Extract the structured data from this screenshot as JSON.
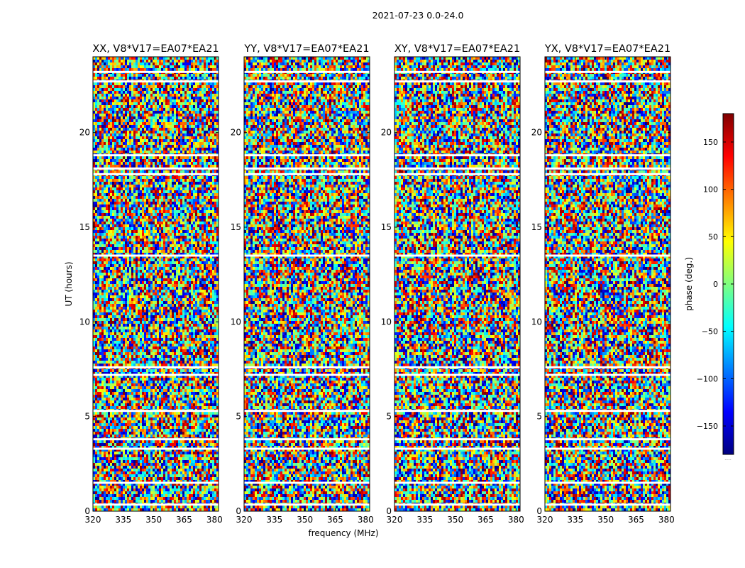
{
  "figure_title": "2021-07-23 0.0-24.0",
  "xlabel": "frequency (MHz)",
  "ylabel": "UT (hours)",
  "colorbar": {
    "label": "phase (deg.)",
    "range": [
      -180,
      180
    ],
    "ticks": [
      150,
      100,
      50,
      0,
      -50,
      -100,
      -150
    ],
    "tick_labels": [
      "150",
      "100",
      "50",
      "0",
      "−50",
      "−100",
      "−150"
    ],
    "footer": "....."
  },
  "colors": {
    "jet": [
      "#00007f",
      "#0000ff",
      "#007fff",
      "#00ffff",
      "#7fff7f",
      "#ffff00",
      "#ff7f00",
      "#ff0000",
      "#7f0000"
    ]
  },
  "chart_data": [
    {
      "type": "heatmap",
      "title": "XX, V8*V17=EA07*EA21",
      "xlim": [
        320,
        382
      ],
      "ylim": [
        0,
        24
      ],
      "xticks": [
        320,
        335,
        350,
        365,
        380
      ],
      "yticks": [
        0,
        5,
        10,
        15,
        20
      ],
      "value": "phase (deg.)",
      "vmin": -180,
      "vmax": 180,
      "gaps_hours": [
        0.35,
        1.5,
        3.3,
        3.8,
        5.3,
        7.2,
        7.6,
        13.5,
        17.8,
        18.1,
        18.8,
        22.7,
        23.2
      ]
    },
    {
      "type": "heatmap",
      "title": "YY, V8*V17=EA07*EA21",
      "xlim": [
        320,
        382
      ],
      "ylim": [
        0,
        24
      ],
      "xticks": [
        320,
        335,
        350,
        365,
        380
      ],
      "yticks": [
        0,
        5,
        10,
        15,
        20
      ],
      "value": "phase (deg.)",
      "vmin": -180,
      "vmax": 180,
      "gaps_hours": [
        0.35,
        1.5,
        3.3,
        3.8,
        5.3,
        7.2,
        7.6,
        13.5,
        17.8,
        18.1,
        18.8,
        22.7,
        23.2
      ]
    },
    {
      "type": "heatmap",
      "title": "XY, V8*V17=EA07*EA21",
      "xlim": [
        320,
        382
      ],
      "ylim": [
        0,
        24
      ],
      "xticks": [
        320,
        335,
        350,
        365,
        380
      ],
      "yticks": [
        0,
        5,
        10,
        15,
        20
      ],
      "value": "phase (deg.)",
      "vmin": -180,
      "vmax": 180,
      "gaps_hours": [
        0.35,
        1.5,
        3.3,
        3.8,
        5.3,
        7.2,
        7.6,
        13.5,
        17.8,
        18.1,
        18.8,
        22.7,
        23.2
      ]
    },
    {
      "type": "heatmap",
      "title": "YX, V8*V17=EA07*EA21",
      "xlim": [
        320,
        382
      ],
      "ylim": [
        0,
        24
      ],
      "xticks": [
        320,
        335,
        350,
        365,
        380
      ],
      "yticks": [
        0,
        5,
        10,
        15,
        20
      ],
      "value": "phase (deg.)",
      "vmin": -180,
      "vmax": 180,
      "gaps_hours": [
        0.35,
        1.5,
        3.3,
        3.8,
        5.3,
        7.2,
        7.6,
        13.5,
        17.8,
        18.1,
        18.8,
        22.7,
        23.2
      ]
    }
  ]
}
